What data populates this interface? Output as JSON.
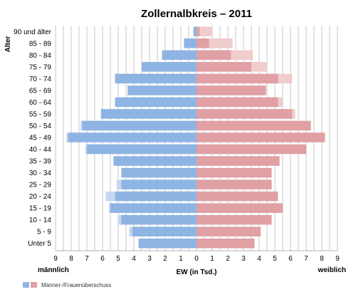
{
  "chart_data": {
    "type": "bar",
    "orientation": "horizontal",
    "layout": "population-pyramid",
    "title": "Zollernalbkreis – 2011",
    "ylabel": "Alter",
    "xlabel": "EW (in Tsd.)",
    "left_label": "männlich",
    "right_label": "weiblich",
    "xlim": [
      -9,
      9
    ],
    "x_ticks": [
      9,
      8,
      7,
      6,
      5,
      4,
      3,
      2,
      1,
      0,
      1,
      2,
      3,
      4,
      5,
      6,
      7,
      8,
      9
    ],
    "grid": true,
    "legend_position": "bottom-left",
    "legend_label": "Männer-/Frauenüberschuss",
    "categories": [
      "90 und älter",
      "85 - 89",
      "80 - 84",
      "75 - 79",
      "70 - 74",
      "65 - 69",
      "60 - 64",
      "55 - 59",
      "50 - 54",
      "45 - 49",
      "40 - 44",
      "35 - 39",
      "30 - 34",
      "25 - 29",
      "20 - 24",
      "15 - 19",
      "10 - 14",
      "5 - 9",
      "Unter 5"
    ],
    "series": [
      {
        "name": "männlich",
        "values": [
          0.2,
          0.8,
          2.2,
          3.5,
          5.2,
          4.4,
          5.2,
          6.1,
          7.4,
          8.3,
          7.1,
          5.3,
          4.8,
          5.1,
          5.8,
          5.6,
          5.0,
          4.3,
          3.7
        ]
      },
      {
        "name": "weiblich",
        "values": [
          1.0,
          2.3,
          3.6,
          4.5,
          6.1,
          4.5,
          5.5,
          6.3,
          7.3,
          8.2,
          7.0,
          5.3,
          4.8,
          4.8,
          5.2,
          5.5,
          4.8,
          4.1,
          3.7
        ]
      }
    ],
    "colors": {
      "male": "#8eb4e3",
      "male_surplus": "#c6d8f0",
      "female": "#e0a0a4",
      "female_surplus": "#f0cccd",
      "grid": "#bdbdbd"
    }
  }
}
